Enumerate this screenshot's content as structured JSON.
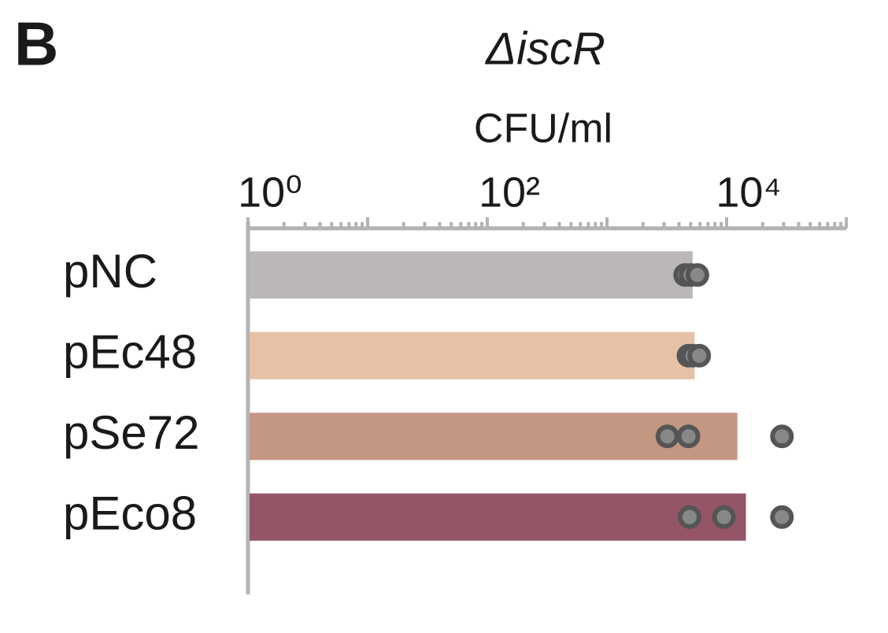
{
  "chart_data": {
    "type": "bar",
    "orientation": "horizontal",
    "panel_label": "B",
    "title": "ΔiscR",
    "xlabel": "CFU/ml",
    "categories": [
      "pNC",
      "pEc48",
      "pSe72",
      "pEco8"
    ],
    "values": [
      5200,
      5400,
      12300,
      14500
    ],
    "colors": [
      "#bab7b6",
      "#e6c1a5",
      "#c49782",
      "#945566"
    ],
    "points": [
      [
        4500,
        5000,
        5700
      ],
      [
        4800,
        5200,
        5900
      ],
      [
        3200,
        4800,
        29000
      ],
      [
        4900,
        9500,
        29000
      ]
    ],
    "point_color": "#555555",
    "xscale": "log",
    "xlim": [
      1,
      100000
    ],
    "xticks": [
      {
        "value": 1,
        "label": "10⁰"
      },
      {
        "value": 100,
        "label": "10²"
      },
      {
        "value": 10000,
        "label": "10⁴"
      }
    ],
    "xticks_minor": [
      2,
      3,
      4,
      5,
      6,
      7,
      8,
      9,
      10,
      20,
      30,
      40,
      50,
      60,
      70,
      80,
      90,
      100,
      200,
      300,
      400,
      500,
      600,
      700,
      800,
      900,
      1000,
      2000,
      3000,
      4000,
      5000,
      6000,
      7000,
      8000,
      9000,
      10000,
      20000,
      30000,
      40000,
      50000,
      60000,
      70000,
      80000,
      90000,
      100000
    ]
  }
}
